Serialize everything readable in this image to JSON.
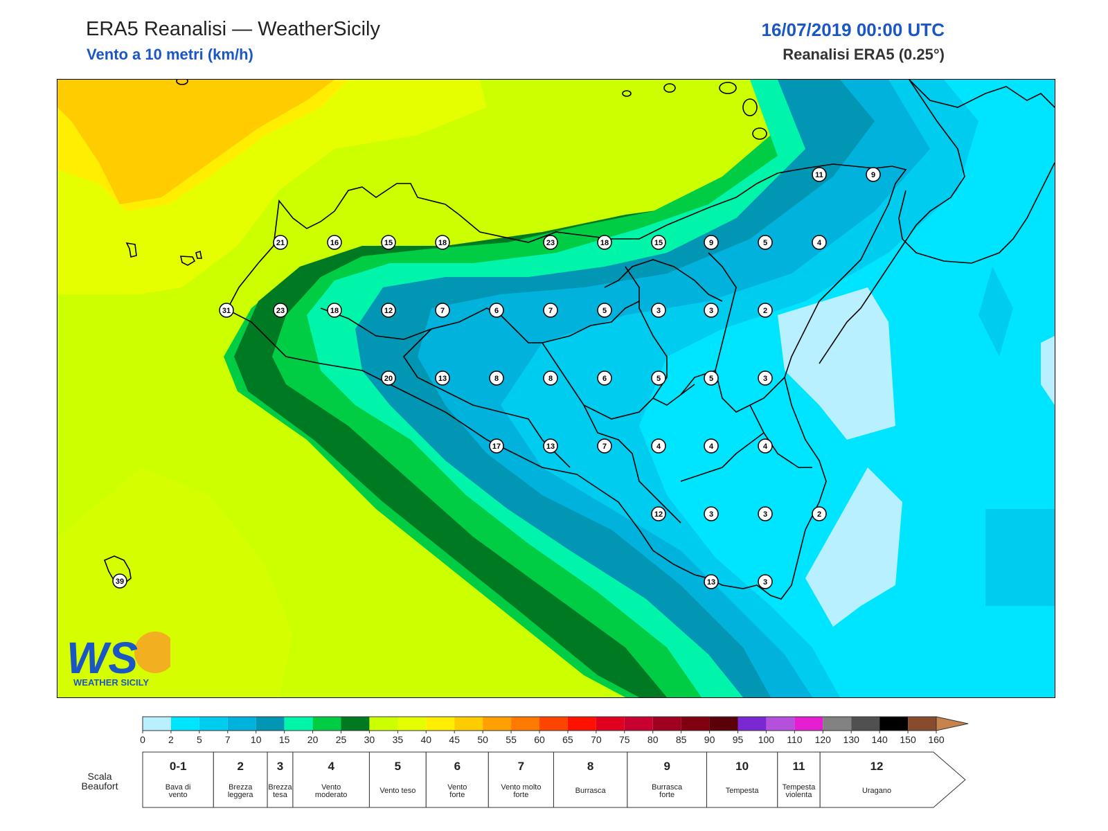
{
  "header": {
    "title": "ERA5 Reanalisi — WeatherSicily",
    "subtitle": "Vento a 10 metri (km/h)",
    "datetime": "16/07/2019 00:00 UTC",
    "source": "Reanalisi ERA5 (0.25°)"
  },
  "logo": {
    "letters": "WS",
    "text": "WEATHER SICILY"
  },
  "wind_points": [
    {
      "v": "11"
    },
    {
      "v": "9"
    },
    {
      "v": "21"
    },
    {
      "v": "16"
    },
    {
      "v": "15"
    },
    {
      "v": "18"
    },
    {
      "v": "23"
    },
    {
      "v": "18"
    },
    {
      "v": "15"
    },
    {
      "v": "9"
    },
    {
      "v": "5"
    },
    {
      "v": "4"
    },
    {
      "v": "31"
    },
    {
      "v": "23"
    },
    {
      "v": "18"
    },
    {
      "v": "12"
    },
    {
      "v": "7"
    },
    {
      "v": "6"
    },
    {
      "v": "7"
    },
    {
      "v": "5"
    },
    {
      "v": "3"
    },
    {
      "v": "3"
    },
    {
      "v": "2"
    },
    {
      "v": "20"
    },
    {
      "v": "13"
    },
    {
      "v": "8"
    },
    {
      "v": "8"
    },
    {
      "v": "6"
    },
    {
      "v": "5"
    },
    {
      "v": "5"
    },
    {
      "v": "3"
    },
    {
      "v": "17"
    },
    {
      "v": "13"
    },
    {
      "v": "7"
    },
    {
      "v": "4"
    },
    {
      "v": "4"
    },
    {
      "v": "4"
    },
    {
      "v": "12"
    },
    {
      "v": "3"
    },
    {
      "v": "3"
    },
    {
      "v": "2"
    },
    {
      "v": "13"
    },
    {
      "v": "3"
    },
    {
      "v": "39"
    }
  ],
  "colorbar": {
    "ticks": [
      "0",
      "2",
      "5",
      "7",
      "10",
      "15",
      "20",
      "25",
      "30",
      "35",
      "40",
      "45",
      "50",
      "55",
      "60",
      "65",
      "70",
      "75",
      "80",
      "85",
      "90",
      "95",
      "100",
      "110",
      "120",
      "130",
      "140",
      "150",
      "160"
    ],
    "colors": [
      "#b9f0ff",
      "#00e5ff",
      "#00ccf0",
      "#00b2dc",
      "#0096b4",
      "#00f5aa",
      "#00cc44",
      "#007a22",
      "#ccff00",
      "#e6ff00",
      "#ffee00",
      "#ffcc00",
      "#ffa000",
      "#ff7a00",
      "#ff4400",
      "#ff1100",
      "#e00020",
      "#c80030",
      "#a00020",
      "#800010",
      "#5a0008",
      "#7a28d2",
      "#b450dc",
      "#e61ed2",
      "#828282",
      "#505050",
      "#000000",
      "#874b2d",
      "#c8824b"
    ]
  },
  "beaufort": {
    "title_line1": "Scala",
    "title_line2": "Beaufort",
    "classes": [
      {
        "num": "0-1",
        "l1": "Bava di",
        "l2": "vento"
      },
      {
        "num": "2",
        "l1": "Brezza",
        "l2": "leggera"
      },
      {
        "num": "3",
        "l1": "Brezza",
        "l2": "tesa"
      },
      {
        "num": "4",
        "l1": "Vento",
        "l2": "moderato"
      },
      {
        "num": "5",
        "l1": "Vento teso",
        "l2": ""
      },
      {
        "num": "6",
        "l1": "Vento",
        "l2": "forte"
      },
      {
        "num": "7",
        "l1": "Vento molto",
        "l2": "forte"
      },
      {
        "num": "8",
        "l1": "Burrasca",
        "l2": ""
      },
      {
        "num": "9",
        "l1": "Burrasca",
        "l2": "forte"
      },
      {
        "num": "10",
        "l1": "Tempesta",
        "l2": ""
      },
      {
        "num": "11",
        "l1": "Tempesta",
        "l2": "violenta"
      },
      {
        "num": "12",
        "l1": "Uragano",
        "l2": ""
      }
    ]
  }
}
